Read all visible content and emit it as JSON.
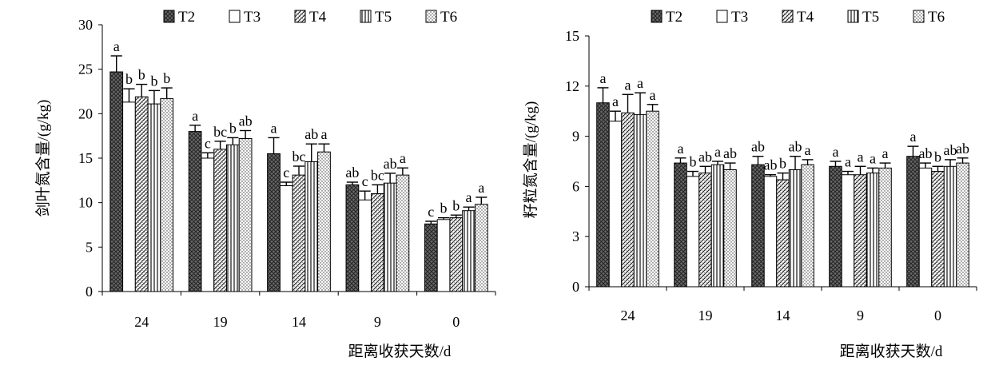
{
  "chart_data": [
    {
      "type": "bar",
      "ylabel": "剑叶氮含量/(g/kg)",
      "xlabel": "距离收获天数/d",
      "categories": [
        "24",
        "19",
        "14",
        "9",
        "0"
      ],
      "ylim": [
        0,
        30
      ],
      "yticks": [
        0,
        5,
        10,
        15,
        20,
        25,
        30
      ],
      "legend": "top",
      "series": [
        {
          "name": "T2",
          "pattern": "cross",
          "values": [
            24.7,
            18.0,
            15.5,
            12.0,
            7.6
          ],
          "errors": [
            1.8,
            0.7,
            1.8,
            0.3,
            0.3
          ],
          "labels": [
            "a",
            "a",
            "a",
            "ab",
            "c"
          ]
        },
        {
          "name": "T3",
          "pattern": "none",
          "values": [
            21.3,
            15.0,
            11.9,
            10.3,
            8.1
          ],
          "errors": [
            1.5,
            0.6,
            0.4,
            1.0,
            0.2
          ],
          "labels": [
            "b",
            "c",
            "c",
            "c",
            "b"
          ]
        },
        {
          "name": "T4",
          "pattern": "diag",
          "values": [
            21.9,
            16.0,
            13.1,
            11.0,
            8.3
          ],
          "errors": [
            1.4,
            0.9,
            1.0,
            1.0,
            0.3
          ],
          "labels": [
            "b",
            "bc",
            "bc",
            "bc",
            "b"
          ]
        },
        {
          "name": "T5",
          "pattern": "vert",
          "values": [
            21.1,
            16.5,
            14.6,
            12.2,
            9.1
          ],
          "errors": [
            1.5,
            0.8,
            2.0,
            1.1,
            0.4
          ],
          "labels": [
            "b",
            "b",
            "ab",
            "ab",
            "a"
          ]
        },
        {
          "name": "T6",
          "pattern": "dots",
          "values": [
            21.7,
            17.2,
            15.7,
            13.1,
            9.8
          ],
          "errors": [
            1.2,
            0.9,
            0.9,
            0.8,
            0.8
          ],
          "labels": [
            "b",
            "ab",
            "a",
            "a",
            "a"
          ]
        }
      ]
    },
    {
      "type": "bar",
      "ylabel": "籽粒氮含量/(g/kg)",
      "xlabel": "距离收获天数/d",
      "categories": [
        "24",
        "19",
        "14",
        "9",
        "0"
      ],
      "ylim": [
        0,
        15
      ],
      "yticks": [
        0,
        3,
        6,
        9,
        12,
        15
      ],
      "legend": "top",
      "series": [
        {
          "name": "T2",
          "pattern": "cross",
          "values": [
            11.0,
            7.4,
            7.3,
            7.2,
            7.8
          ],
          "errors": [
            0.9,
            0.3,
            0.5,
            0.3,
            0.6
          ],
          "labels": [
            "a",
            "a",
            "ab",
            "a",
            "a"
          ]
        },
        {
          "name": "T3",
          "pattern": "none",
          "values": [
            9.9,
            6.6,
            6.6,
            6.7,
            7.1
          ],
          "errors": [
            0.6,
            0.3,
            0.1,
            0.2,
            0.3
          ],
          "labels": [
            "a",
            "b",
            "ab",
            "a",
            "ab"
          ]
        },
        {
          "name": "T4",
          "pattern": "diag",
          "values": [
            10.4,
            6.8,
            6.4,
            6.7,
            6.9
          ],
          "errors": [
            1.1,
            0.4,
            0.4,
            0.5,
            0.3
          ],
          "labels": [
            "a",
            "ab",
            "b",
            "a",
            "b"
          ]
        },
        {
          "name": "T5",
          "pattern": "vert",
          "values": [
            10.3,
            7.3,
            7.0,
            6.8,
            7.2
          ],
          "errors": [
            1.3,
            0.2,
            0.8,
            0.3,
            0.4
          ],
          "labels": [
            "a",
            "a",
            "ab",
            "a",
            "ab"
          ]
        },
        {
          "name": "T6",
          "pattern": "dots",
          "values": [
            10.5,
            7.0,
            7.3,
            7.1,
            7.4
          ],
          "errors": [
            0.4,
            0.4,
            0.3,
            0.3,
            0.3
          ],
          "labels": [
            "a",
            "ab",
            "a",
            "a",
            "ab"
          ]
        }
      ]
    }
  ]
}
